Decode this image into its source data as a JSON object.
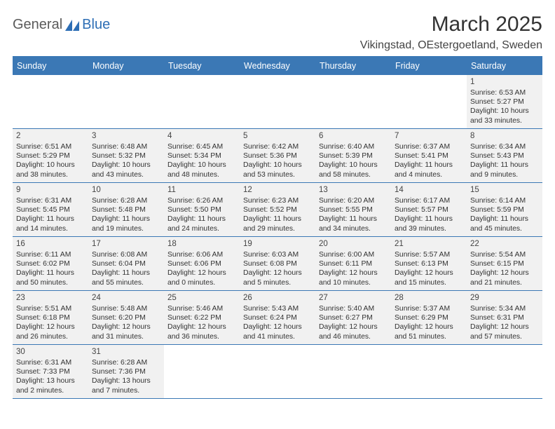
{
  "logo": {
    "word1": "General",
    "word2": "Blue",
    "mark_color": "#2d6eb5"
  },
  "title": "March 2025",
  "location": "Vikingstad, OEstergoetland, Sweden",
  "colors": {
    "header_bg": "#3b78b5",
    "header_text": "#ffffff",
    "cell_bg": "#f1f1f1",
    "rule": "#3b78b5",
    "body_text": "#333333"
  },
  "typography": {
    "title_fontsize": 30,
    "location_fontsize": 16,
    "dayheader_fontsize": 12.5,
    "cell_fontsize": 10.4
  },
  "day_names": [
    "Sunday",
    "Monday",
    "Tuesday",
    "Wednesday",
    "Thursday",
    "Friday",
    "Saturday"
  ],
  "weeks": [
    [
      null,
      null,
      null,
      null,
      null,
      null,
      {
        "n": "1",
        "sunrise": "Sunrise: 6:53 AM",
        "sunset": "Sunset: 5:27 PM",
        "daylight": "Daylight: 10 hours and 33 minutes."
      }
    ],
    [
      {
        "n": "2",
        "sunrise": "Sunrise: 6:51 AM",
        "sunset": "Sunset: 5:29 PM",
        "daylight": "Daylight: 10 hours and 38 minutes."
      },
      {
        "n": "3",
        "sunrise": "Sunrise: 6:48 AM",
        "sunset": "Sunset: 5:32 PM",
        "daylight": "Daylight: 10 hours and 43 minutes."
      },
      {
        "n": "4",
        "sunrise": "Sunrise: 6:45 AM",
        "sunset": "Sunset: 5:34 PM",
        "daylight": "Daylight: 10 hours and 48 minutes."
      },
      {
        "n": "5",
        "sunrise": "Sunrise: 6:42 AM",
        "sunset": "Sunset: 5:36 PM",
        "daylight": "Daylight: 10 hours and 53 minutes."
      },
      {
        "n": "6",
        "sunrise": "Sunrise: 6:40 AM",
        "sunset": "Sunset: 5:39 PM",
        "daylight": "Daylight: 10 hours and 58 minutes."
      },
      {
        "n": "7",
        "sunrise": "Sunrise: 6:37 AM",
        "sunset": "Sunset: 5:41 PM",
        "daylight": "Daylight: 11 hours and 4 minutes."
      },
      {
        "n": "8",
        "sunrise": "Sunrise: 6:34 AM",
        "sunset": "Sunset: 5:43 PM",
        "daylight": "Daylight: 11 hours and 9 minutes."
      }
    ],
    [
      {
        "n": "9",
        "sunrise": "Sunrise: 6:31 AM",
        "sunset": "Sunset: 5:45 PM",
        "daylight": "Daylight: 11 hours and 14 minutes."
      },
      {
        "n": "10",
        "sunrise": "Sunrise: 6:28 AM",
        "sunset": "Sunset: 5:48 PM",
        "daylight": "Daylight: 11 hours and 19 minutes."
      },
      {
        "n": "11",
        "sunrise": "Sunrise: 6:26 AM",
        "sunset": "Sunset: 5:50 PM",
        "daylight": "Daylight: 11 hours and 24 minutes."
      },
      {
        "n": "12",
        "sunrise": "Sunrise: 6:23 AM",
        "sunset": "Sunset: 5:52 PM",
        "daylight": "Daylight: 11 hours and 29 minutes."
      },
      {
        "n": "13",
        "sunrise": "Sunrise: 6:20 AM",
        "sunset": "Sunset: 5:55 PM",
        "daylight": "Daylight: 11 hours and 34 minutes."
      },
      {
        "n": "14",
        "sunrise": "Sunrise: 6:17 AM",
        "sunset": "Sunset: 5:57 PM",
        "daylight": "Daylight: 11 hours and 39 minutes."
      },
      {
        "n": "15",
        "sunrise": "Sunrise: 6:14 AM",
        "sunset": "Sunset: 5:59 PM",
        "daylight": "Daylight: 11 hours and 45 minutes."
      }
    ],
    [
      {
        "n": "16",
        "sunrise": "Sunrise: 6:11 AM",
        "sunset": "Sunset: 6:02 PM",
        "daylight": "Daylight: 11 hours and 50 minutes."
      },
      {
        "n": "17",
        "sunrise": "Sunrise: 6:08 AM",
        "sunset": "Sunset: 6:04 PM",
        "daylight": "Daylight: 11 hours and 55 minutes."
      },
      {
        "n": "18",
        "sunrise": "Sunrise: 6:06 AM",
        "sunset": "Sunset: 6:06 PM",
        "daylight": "Daylight: 12 hours and 0 minutes."
      },
      {
        "n": "19",
        "sunrise": "Sunrise: 6:03 AM",
        "sunset": "Sunset: 6:08 PM",
        "daylight": "Daylight: 12 hours and 5 minutes."
      },
      {
        "n": "20",
        "sunrise": "Sunrise: 6:00 AM",
        "sunset": "Sunset: 6:11 PM",
        "daylight": "Daylight: 12 hours and 10 minutes."
      },
      {
        "n": "21",
        "sunrise": "Sunrise: 5:57 AM",
        "sunset": "Sunset: 6:13 PM",
        "daylight": "Daylight: 12 hours and 15 minutes."
      },
      {
        "n": "22",
        "sunrise": "Sunrise: 5:54 AM",
        "sunset": "Sunset: 6:15 PM",
        "daylight": "Daylight: 12 hours and 21 minutes."
      }
    ],
    [
      {
        "n": "23",
        "sunrise": "Sunrise: 5:51 AM",
        "sunset": "Sunset: 6:18 PM",
        "daylight": "Daylight: 12 hours and 26 minutes."
      },
      {
        "n": "24",
        "sunrise": "Sunrise: 5:48 AM",
        "sunset": "Sunset: 6:20 PM",
        "daylight": "Daylight: 12 hours and 31 minutes."
      },
      {
        "n": "25",
        "sunrise": "Sunrise: 5:46 AM",
        "sunset": "Sunset: 6:22 PM",
        "daylight": "Daylight: 12 hours and 36 minutes."
      },
      {
        "n": "26",
        "sunrise": "Sunrise: 5:43 AM",
        "sunset": "Sunset: 6:24 PM",
        "daylight": "Daylight: 12 hours and 41 minutes."
      },
      {
        "n": "27",
        "sunrise": "Sunrise: 5:40 AM",
        "sunset": "Sunset: 6:27 PM",
        "daylight": "Daylight: 12 hours and 46 minutes."
      },
      {
        "n": "28",
        "sunrise": "Sunrise: 5:37 AM",
        "sunset": "Sunset: 6:29 PM",
        "daylight": "Daylight: 12 hours and 51 minutes."
      },
      {
        "n": "29",
        "sunrise": "Sunrise: 5:34 AM",
        "sunset": "Sunset: 6:31 PM",
        "daylight": "Daylight: 12 hours and 57 minutes."
      }
    ],
    [
      {
        "n": "30",
        "sunrise": "Sunrise: 6:31 AM",
        "sunset": "Sunset: 7:33 PM",
        "daylight": "Daylight: 13 hours and 2 minutes."
      },
      {
        "n": "31",
        "sunrise": "Sunrise: 6:28 AM",
        "sunset": "Sunset: 7:36 PM",
        "daylight": "Daylight: 13 hours and 7 minutes."
      },
      null,
      null,
      null,
      null,
      null
    ]
  ]
}
